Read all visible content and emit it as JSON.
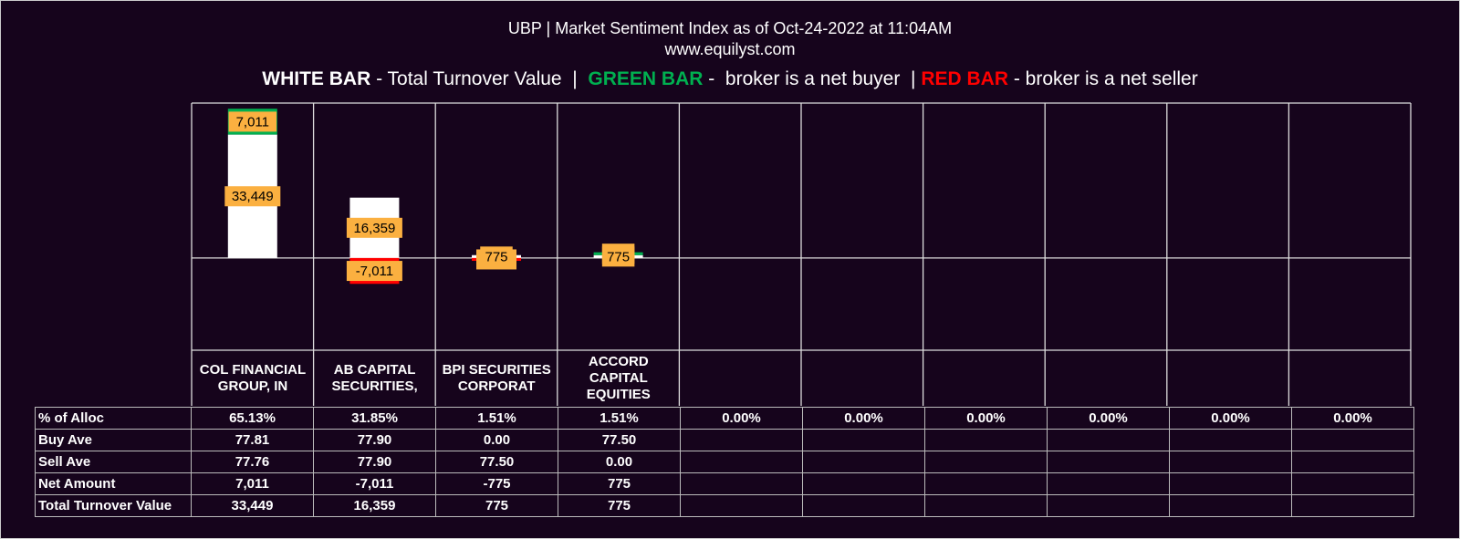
{
  "chart_data": {
    "type": "bar",
    "title": "UBP | Market Sentiment Index as of Oct-24-2022 at 11:04AM",
    "subtitle": "www.equilyst.com",
    "legend_note": [
      {
        "text": "WHITE BAR",
        "color": "#ffffff",
        "bold": true
      },
      {
        "text": " - Total Turnover Value  |  ",
        "color": "#ffffff",
        "bold": false
      },
      {
        "text": "GREEN BAR",
        "color": "#00b050",
        "bold": true
      },
      {
        "text": " -  broker is a net buyer  | ",
        "color": "#ffffff",
        "bold": false
      },
      {
        "text": "RED BAR",
        "color": "#ff0000",
        "bold": true
      },
      {
        "text": " - broker is a net seller",
        "color": "#ffffff",
        "bold": false
      }
    ],
    "categories": [
      "COL FINANCIAL GROUP, IN",
      "AB CAPITAL SECURITIES,",
      "BPI SECURITIES CORPORAT",
      "ACCORD CAPITAL EQUITIES",
      null,
      null,
      null,
      null,
      null,
      null
    ],
    "ylim": [
      -25000,
      42000
    ],
    "series": [
      {
        "name": "Total Turnover Value",
        "color": "#ffffff",
        "values": [
          33449,
          16359,
          775,
          775,
          null,
          null,
          null,
          null,
          null,
          null
        ],
        "value_labels": [
          "33,449",
          "16,359",
          "775",
          "775",
          null,
          null,
          null,
          null,
          null,
          null
        ]
      },
      {
        "name": "Net Amount",
        "color": "#00b050",
        "negative_color": "#ff0000",
        "values": [
          7011,
          -7011,
          -775,
          775,
          null,
          null,
          null,
          null,
          null,
          null
        ],
        "value_labels": [
          "7,011",
          "-7,011",
          "-775",
          "775",
          null,
          null,
          null,
          null,
          null,
          null
        ]
      }
    ],
    "table": {
      "rows": [
        {
          "label": "% of Alloc",
          "cells": [
            "65.13%",
            "31.85%",
            "1.51%",
            "1.51%",
            "0.00%",
            "0.00%",
            "0.00%",
            "0.00%",
            "0.00%",
            "0.00%"
          ]
        },
        {
          "label": "Buy Ave",
          "cells": [
            "77.81",
            "77.90",
            "0.00",
            "77.50",
            null,
            null,
            null,
            null,
            null,
            null
          ]
        },
        {
          "label": "Sell Ave",
          "cells": [
            "77.76",
            "77.90",
            "77.50",
            "0.00",
            null,
            null,
            null,
            null,
            null,
            null
          ]
        },
        {
          "label": "Net Amount",
          "cells": [
            "7,011",
            "-7,011",
            "-775",
            "775",
            null,
            null,
            null,
            null,
            null,
            null
          ]
        },
        {
          "label": "Total Turnover Value",
          "cells": [
            "33,449",
            "16,359",
            "775",
            "775",
            null,
            null,
            null,
            null,
            null,
            null
          ]
        }
      ]
    }
  }
}
